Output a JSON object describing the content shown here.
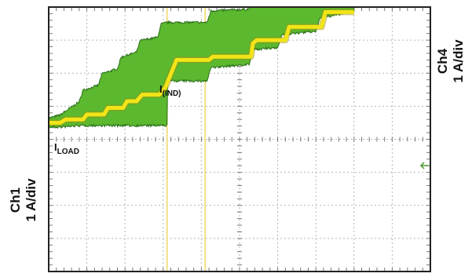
{
  "labels": {
    "ch1_line1": "Ch1",
    "ch1_line2": "1 A/div",
    "ch4_line1": "Ch4",
    "ch4_line2": "1 A/div",
    "iload_main": "I",
    "iload_sub": "LOAD",
    "iind_main": "I",
    "iind_sub": "(IND)"
  },
  "colors": {
    "grid": "#b5b5b5",
    "frame": "#222222",
    "inductor_fill": "#5cb82e",
    "inductor_edge": "#2a6e1a",
    "load_trace": "#f2e418",
    "load_trace_edge": "#9a8f10",
    "cursor": "#f0e080"
  },
  "chart_data": {
    "type": "line",
    "divisions": {
      "x": 10,
      "y": 8
    },
    "cursors_x_div": [
      3.1,
      4.1
    ],
    "series": [
      {
        "name": "I(IND)",
        "kind": "envelope",
        "x_div": [
          0,
          0.3,
          0.8,
          0.9,
          1.3,
          1.4,
          1.8,
          1.9,
          2.3,
          2.4,
          2.85,
          2.95,
          3.1,
          3.1,
          4.15,
          4.25,
          5.25,
          5.35,
          6.0,
          6.1,
          7.0,
          7.1,
          8.0
        ],
        "upper_div": [
          4.6,
          4.7,
          5.1,
          5.45,
          5.6,
          5.95,
          6.1,
          6.45,
          6.6,
          6.95,
          7.05,
          7.45,
          7.5,
          7.5,
          7.5,
          7.85,
          7.9,
          8.35,
          8.4,
          8.8,
          8.9,
          9.3,
          9.5
        ],
        "lower_div": [
          4.4,
          4.4,
          4.45,
          4.45,
          4.45,
          4.45,
          4.45,
          4.45,
          4.45,
          4.45,
          4.45,
          4.45,
          4.45,
          5.8,
          5.8,
          6.2,
          6.3,
          6.75,
          6.8,
          7.2,
          7.3,
          7.7,
          7.9
        ]
      },
      {
        "name": "I(LOAD)",
        "kind": "line",
        "x_div": [
          0,
          0.3,
          0.45,
          0.9,
          1.0,
          1.45,
          1.55,
          1.95,
          2.05,
          2.3,
          2.45,
          2.9,
          3.05,
          3.35,
          4.2,
          4.3,
          5.3,
          5.35,
          5.45,
          6.2,
          6.3,
          7.15,
          7.25,
          8.0
        ],
        "y_div": [
          4.5,
          4.5,
          4.6,
          4.6,
          4.75,
          4.75,
          4.95,
          4.95,
          5.15,
          5.15,
          5.35,
          5.35,
          5.55,
          6.4,
          6.4,
          6.5,
          6.5,
          6.9,
          7.0,
          7.0,
          7.4,
          7.4,
          7.85,
          7.85
        ]
      }
    ]
  }
}
